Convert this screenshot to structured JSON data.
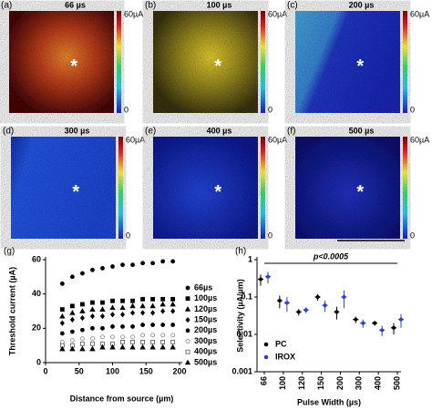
{
  "panels": [
    {
      "label": "(a)",
      "title": "66 µs"
    },
    {
      "label": "(b)",
      "title": "100 µs"
    },
    {
      "label": "(c)",
      "title": "200 µs"
    },
    {
      "label": "(d)",
      "title": "300 µs"
    },
    {
      "label": "(e)",
      "title": "400 µs"
    },
    {
      "label": "(f)",
      "title": "500 µs"
    }
  ],
  "colorbar": {
    "max": "60µA",
    "min": "0"
  },
  "center_marker": "*",
  "chart_data": [
    {
      "type": "scatter",
      "label": "(g)",
      "xlabel": "Distance from source (µm)",
      "ylabel": "Threshold current (µA)",
      "x": [
        25,
        40,
        55,
        70,
        85,
        100,
        115,
        130,
        145,
        160,
        175,
        190
      ],
      "xlim": [
        0,
        200
      ],
      "xticks": [
        0,
        50,
        100,
        150,
        200
      ],
      "ylim": [
        0,
        60
      ],
      "yticks": [
        0,
        20,
        40,
        60
      ],
      "series": [
        {
          "name": "66µs",
          "color": "#000",
          "marker": "circle",
          "filled": true,
          "values": [
            46,
            50,
            52,
            54,
            55,
            56,
            57,
            57,
            58,
            58,
            59,
            59
          ]
        },
        {
          "name": "100µs",
          "color": "#000",
          "marker": "square",
          "filled": true,
          "values": [
            31,
            33,
            34,
            35,
            35,
            36,
            36,
            36,
            37,
            37,
            37,
            37
          ]
        },
        {
          "name": "120µs",
          "color": "#000",
          "marker": "triangle",
          "filled": true,
          "values": [
            27,
            29,
            30,
            31,
            31,
            32,
            32,
            33,
            33,
            33,
            34,
            34
          ]
        },
        {
          "name": "150µs",
          "color": "#000",
          "marker": "diamond",
          "filled": true,
          "values": [
            23,
            25,
            26,
            27,
            27,
            28,
            28,
            29,
            29,
            29,
            30,
            30
          ]
        },
        {
          "name": "200µs",
          "color": "#000",
          "marker": "circle",
          "filled": true,
          "values": [
            17,
            18,
            19,
            20,
            20,
            21,
            21,
            21,
            22,
            22,
            22,
            22
          ]
        },
        {
          "name": "300µs",
          "color": "#888",
          "marker": "circle",
          "filled": false,
          "values": [
            12,
            13,
            14,
            14,
            15,
            15,
            15,
            15,
            16,
            16,
            16,
            16
          ]
        },
        {
          "name": "400µs",
          "color": "#555",
          "marker": "square",
          "filled": false,
          "values": [
            10,
            10,
            11,
            11,
            11,
            11,
            12,
            12,
            12,
            12,
            12,
            12
          ]
        },
        {
          "name": "500µs",
          "color": "#000",
          "marker": "triangle",
          "filled": true,
          "values": [
            8,
            8,
            8,
            8,
            9,
            9,
            9,
            9,
            9,
            9,
            9,
            9
          ]
        }
      ]
    },
    {
      "type": "errorbar",
      "label": "(h)",
      "xlabel": "Pulse Width (µs)",
      "ylabel": "Selectivity (µA/µm)",
      "annotation": "p<0.0005",
      "categories": [
        "66",
        "100",
        "120",
        "150",
        "200",
        "300",
        "400",
        "500"
      ],
      "log_y": true,
      "ylim": [
        0.001,
        1
      ],
      "yticks": [
        0.001,
        0.01,
        0.1,
        1
      ],
      "series": [
        {
          "name": "PC",
          "color": "#000",
          "values": [
            0.3,
            0.08,
            0.04,
            0.1,
            0.04,
            0.025,
            0.02,
            0.015
          ],
          "errors": [
            0.1,
            0.03,
            0.008,
            0.02,
            0.015,
            0.005,
            0.003,
            0.005
          ]
        },
        {
          "name": "IROX",
          "color": "#2a3fd8",
          "values": [
            0.35,
            0.07,
            0.045,
            0.06,
            0.1,
            0.02,
            0.013,
            0.025
          ],
          "errors": [
            0.12,
            0.03,
            0.008,
            0.02,
            0.05,
            0.005,
            0.004,
            0.01
          ]
        }
      ]
    }
  ]
}
